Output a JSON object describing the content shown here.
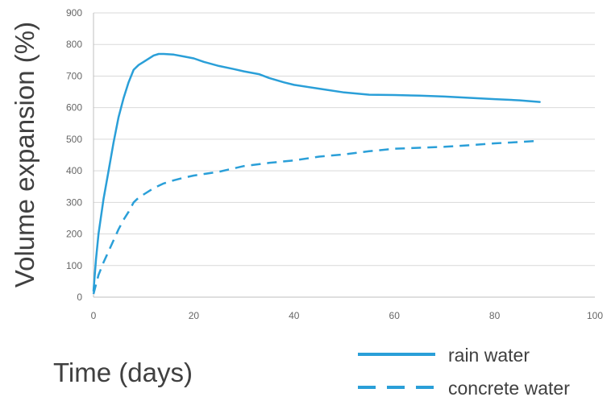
{
  "chart_data": {
    "type": "line",
    "xlabel": "Time (days)",
    "ylabel": "Volume expansion (%)",
    "xlim": [
      0,
      100
    ],
    "ylim": [
      0,
      900
    ],
    "xticks": [
      "0",
      "20",
      "40",
      "60",
      "80",
      "100"
    ],
    "yticks": [
      "0",
      "100",
      "200",
      "300",
      "400",
      "500",
      "600",
      "700",
      "800",
      "900"
    ],
    "grid": "horizontal",
    "legend_position": "bottom-right",
    "series_color": "#2a9fd8",
    "series": [
      {
        "name": "rain water",
        "style": "solid",
        "x": [
          0,
          0.5,
          1,
          2,
          3,
          4,
          5,
          6,
          7,
          8,
          9,
          10,
          12,
          13,
          14,
          16,
          18,
          20,
          22,
          25,
          28,
          30,
          33,
          35,
          38,
          40,
          45,
          50,
          55,
          60,
          65,
          70,
          75,
          80,
          85,
          89
        ],
        "y": [
          20,
          120,
          200,
          310,
          400,
          490,
          570,
          630,
          680,
          720,
          735,
          745,
          765,
          770,
          770,
          768,
          762,
          756,
          745,
          732,
          722,
          715,
          706,
          694,
          680,
          672,
          660,
          648,
          641,
          640,
          638,
          635,
          631,
          627,
          623,
          618
        ]
      },
      {
        "name": "concrete water",
        "style": "dashed",
        "x": [
          0,
          0.5,
          1,
          2,
          3,
          4,
          5,
          6,
          7,
          8,
          9,
          10,
          12,
          14,
          16,
          18,
          20,
          25,
          30,
          35,
          40,
          45,
          50,
          55,
          60,
          65,
          70,
          75,
          80,
          85,
          89
        ],
        "y": [
          10,
          40,
          70,
          110,
          145,
          180,
          215,
          245,
          270,
          300,
          315,
          325,
          345,
          360,
          370,
          378,
          385,
          397,
          415,
          425,
          433,
          445,
          452,
          462,
          470,
          473,
          476,
          481,
          487,
          491,
          495
        ]
      }
    ]
  }
}
